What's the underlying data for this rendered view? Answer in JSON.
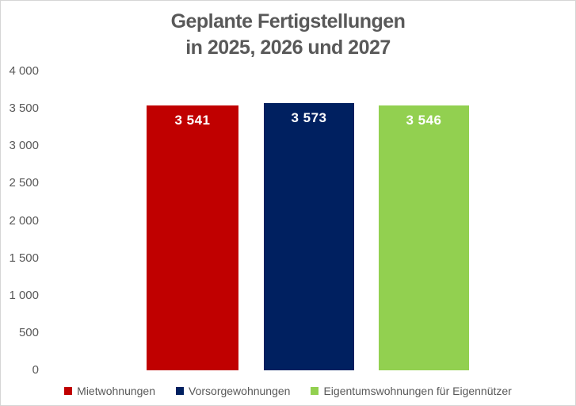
{
  "chart_data": {
    "type": "bar",
    "title_lines": [
      "Geplante Fertigstellungen",
      "in 2025, 2026 und 2027"
    ],
    "categories": [
      "Mietwohnungen",
      "Vorsorgewohnungen",
      "Eigentumswohnungen für Eigennützer"
    ],
    "series": [
      {
        "name": "Mietwohnungen",
        "value": 3541,
        "data_label": "3 541",
        "color": "#c00000"
      },
      {
        "name": "Vorsorgewohnungen",
        "value": 3573,
        "data_label": "3 573",
        "color": "#002060"
      },
      {
        "name": "Eigentumswohnungen für Eigennützer",
        "value": 3546,
        "data_label": "3 546",
        "color": "#92d050"
      }
    ],
    "y_axis": {
      "min": 0,
      "max": 4000,
      "step": 500,
      "tick_labels_top_to_bottom": [
        "4 000",
        "3 500",
        "3 000",
        "2 500",
        "2 000",
        "1 500",
        "1 000",
        "500",
        "0"
      ]
    },
    "grid": false,
    "axis_lines": false,
    "legend_position": "bottom",
    "data_label_color": "#ffffff",
    "text_color": "#595959"
  }
}
